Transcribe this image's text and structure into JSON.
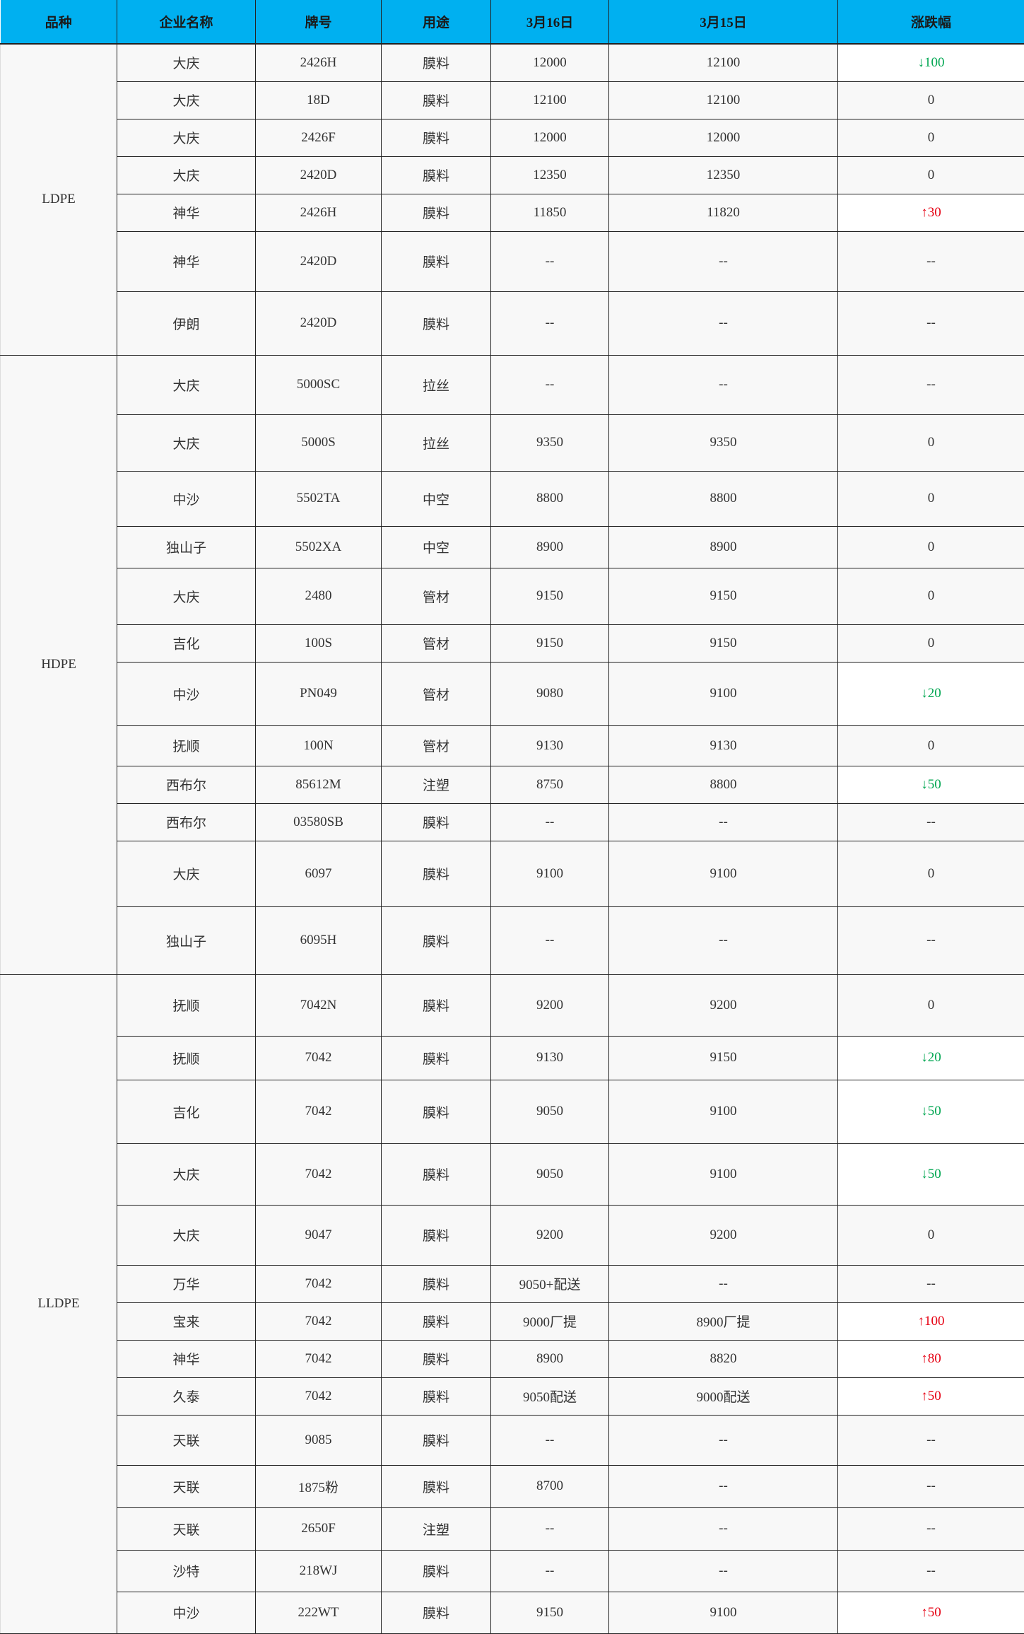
{
  "colors": {
    "header_bg": "#00b0f0",
    "down": "#00a651",
    "up": "#e60012"
  },
  "headers": [
    "品种",
    "企业名称",
    "牌号",
    "用途",
    "3月16日",
    "3月15日",
    "涨跌幅"
  ],
  "groups": [
    {
      "category": "LDPE",
      "rows": [
        [
          "大庆",
          "2426H",
          "膜料",
          "12000",
          "12100",
          "↓100"
        ],
        [
          "大庆",
          "18D",
          "膜料",
          "12100",
          "12100",
          "0"
        ],
        [
          "大庆",
          "2426F",
          "膜料",
          "12000",
          "12000",
          "0"
        ],
        [
          "大庆",
          "2420D",
          "膜料",
          "12350",
          "12350",
          "0"
        ],
        [
          "神华",
          "2426H",
          "膜料",
          "11850",
          "11820",
          "↑30"
        ],
        [
          "神华",
          "2420D",
          "膜料",
          "--",
          "--",
          "--"
        ],
        [
          "伊朗",
          "2420D",
          "膜料",
          "--",
          "--",
          "--"
        ]
      ]
    },
    {
      "category": "HDPE",
      "rows": [
        [
          "大庆",
          "5000SC",
          "拉丝",
          "--",
          "--",
          "--"
        ],
        [
          "大庆",
          "5000S",
          "拉丝",
          "9350",
          "9350",
          "0"
        ],
        [
          "中沙",
          "5502TA",
          "中空",
          "8800",
          "8800",
          "0"
        ],
        [
          "独山子",
          "5502XA",
          "中空",
          "8900",
          "8900",
          "0"
        ],
        [
          "大庆",
          "2480",
          "管材",
          "9150",
          "9150",
          "0"
        ],
        [
          "吉化",
          "100S",
          "管材",
          "9150",
          "9150",
          "0"
        ],
        [
          "中沙",
          "PN049",
          "管材",
          "9080",
          "9100",
          "↓20"
        ],
        [
          "抚顺",
          "100N",
          "管材",
          "9130",
          "9130",
          "0"
        ],
        [
          "西布尔",
          "85612M",
          "注塑",
          "8750",
          "8800",
          "↓50"
        ],
        [
          "西布尔",
          "03580SB",
          "膜料",
          "--",
          "--",
          "--"
        ],
        [
          "大庆",
          "6097",
          "膜料",
          "9100",
          "9100",
          "0"
        ],
        [
          "独山子",
          "6095H",
          "膜料",
          "--",
          "--",
          "--"
        ]
      ]
    },
    {
      "category": "LLDPE",
      "rows": [
        [
          "抚顺",
          "7042N",
          "膜料",
          "9200",
          "9200",
          "0"
        ],
        [
          "抚顺",
          "7042",
          "膜料",
          "9130",
          "9150",
          "↓20"
        ],
        [
          "吉化",
          "7042",
          "膜料",
          "9050",
          "9100",
          "↓50"
        ],
        [
          "大庆",
          "7042",
          "膜料",
          "9050",
          "9100",
          "↓50"
        ],
        [
          "大庆",
          "9047",
          "膜料",
          "9200",
          "9200",
          "0"
        ],
        [
          "万华",
          "7042",
          "膜料",
          "9050+配送",
          "--",
          "--"
        ],
        [
          "宝来",
          "7042",
          "膜料",
          "9000厂提",
          "8900厂提",
          "↑100"
        ],
        [
          "神华",
          "7042",
          "膜料",
          "8900",
          "8820",
          "↑80"
        ],
        [
          "久泰",
          "7042",
          "膜料",
          "9050配送",
          "9000配送",
          "↑50"
        ],
        [
          "天联",
          "9085",
          "膜料",
          "--",
          "--",
          "--"
        ],
        [
          "天联",
          "1875粉",
          "膜料",
          "8700",
          "--",
          "--"
        ],
        [
          "天联",
          "2650F",
          "注塑",
          "--",
          "--",
          "--"
        ],
        [
          "沙特",
          "218WJ",
          "膜料",
          "--",
          "--",
          "--"
        ],
        [
          "中沙",
          "222WT",
          "膜料",
          "9150",
          "9100",
          "↑50"
        ]
      ]
    }
  ]
}
